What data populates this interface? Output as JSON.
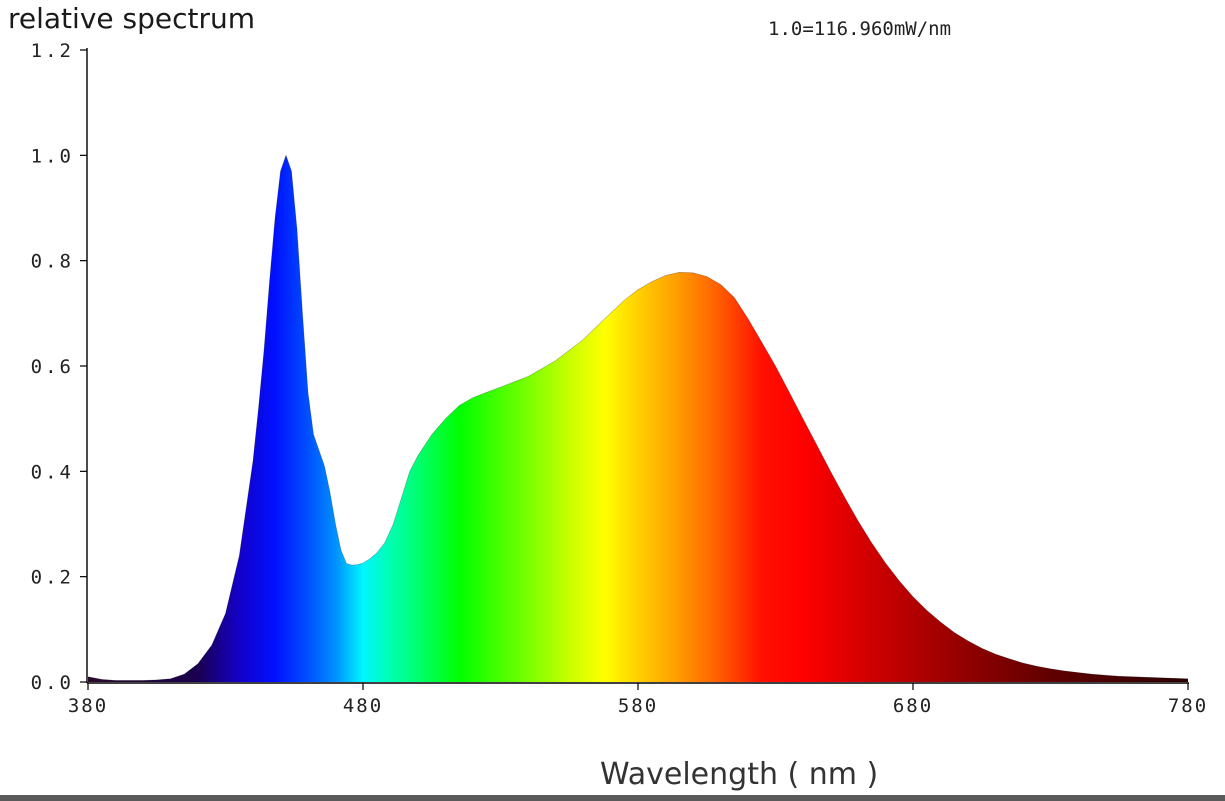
{
  "chart_data": {
    "type": "area",
    "ylabel": "relative spectrum",
    "xlabel": "Wavelength ( nm )",
    "annotation": "1.0=116.960mW/nm",
    "xlim": [
      380,
      780
    ],
    "ylim": [
      0,
      1.2
    ],
    "x_ticks": [
      {
        "value": 380,
        "label": "380"
      },
      {
        "value": 480,
        "label": "480"
      },
      {
        "value": 580,
        "label": "580"
      },
      {
        "value": 680,
        "label": "680"
      },
      {
        "value": 780,
        "label": "780"
      }
    ],
    "y_ticks": [
      {
        "value": 0,
        "label": "0.0"
      },
      {
        "value": 0.2,
        "label": "0.2"
      },
      {
        "value": 0.4,
        "label": "0.4"
      },
      {
        "value": 0.6,
        "label": "0.6"
      },
      {
        "value": 0.8,
        "label": "0.8"
      },
      {
        "value": 1.0,
        "label": "1.0"
      },
      {
        "value": 1.2,
        "label": "1.2"
      }
    ],
    "grid": false,
    "fill": "wavelength-spectrum-colors",
    "series": [
      {
        "x": [
          380,
          385,
          390,
          395,
          400,
          405,
          410,
          415,
          420,
          425,
          430,
          435,
          440,
          442,
          444,
          446,
          448,
          450,
          452,
          454,
          456,
          458,
          460,
          462,
          464,
          466,
          468,
          470,
          472,
          474,
          476,
          478,
          480,
          482,
          485,
          488,
          491,
          494,
          497,
          500,
          505,
          510,
          515,
          520,
          525,
          530,
          535,
          540,
          545,
          550,
          555,
          560,
          565,
          570,
          575,
          580,
          585,
          590,
          595,
          600,
          605,
          610,
          615,
          620,
          625,
          630,
          635,
          640,
          645,
          650,
          655,
          660,
          665,
          670,
          675,
          680,
          685,
          690,
          695,
          700,
          705,
          710,
          715,
          720,
          725,
          730,
          735,
          740,
          745,
          750,
          755,
          760,
          765,
          770,
          775,
          780
        ],
        "y": [
          0.01,
          0.005,
          0.003,
          0.003,
          0.003,
          0.004,
          0.006,
          0.015,
          0.035,
          0.07,
          0.13,
          0.24,
          0.42,
          0.52,
          0.63,
          0.76,
          0.88,
          0.97,
          1.0,
          0.97,
          0.86,
          0.7,
          0.55,
          0.47,
          0.44,
          0.41,
          0.36,
          0.3,
          0.25,
          0.225,
          0.222,
          0.223,
          0.226,
          0.232,
          0.245,
          0.265,
          0.3,
          0.35,
          0.4,
          0.43,
          0.47,
          0.5,
          0.525,
          0.54,
          0.55,
          0.56,
          0.57,
          0.58,
          0.595,
          0.61,
          0.63,
          0.65,
          0.675,
          0.7,
          0.725,
          0.745,
          0.76,
          0.772,
          0.778,
          0.777,
          0.77,
          0.755,
          0.73,
          0.69,
          0.645,
          0.6,
          0.55,
          0.5,
          0.45,
          0.4,
          0.352,
          0.306,
          0.264,
          0.226,
          0.192,
          0.162,
          0.136,
          0.114,
          0.094,
          0.078,
          0.064,
          0.053,
          0.044,
          0.036,
          0.03,
          0.025,
          0.021,
          0.018,
          0.015,
          0.013,
          0.011,
          0.01,
          0.009,
          0.008,
          0.007,
          0.006
        ]
      }
    ]
  }
}
